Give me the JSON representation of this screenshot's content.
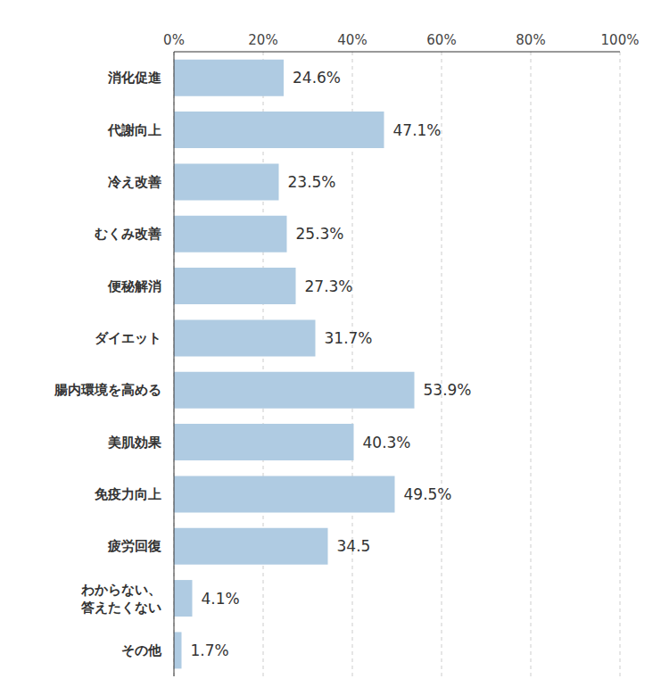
{
  "chart_data": {
    "type": "bar",
    "orientation": "horizontal",
    "categories": [
      "消化促進",
      "代謝向上",
      "冷え改善",
      "むくみ改善",
      "便秘解消",
      "ダイエット",
      "腸内環境を高める",
      "美肌効果",
      "免疫力向上",
      "疲労回復",
      "わからない、答えたくない",
      "その他"
    ],
    "values": [
      24.6,
      47.1,
      23.5,
      25.3,
      27.3,
      31.7,
      53.9,
      40.3,
      49.5,
      34.5,
      4.1,
      1.7
    ],
    "value_labels": [
      "24.6%",
      "47.1%",
      "23.5%",
      "25.3%",
      "27.3%",
      "31.7%",
      "53.9%",
      "40.3%",
      "49.5%",
      "34.5",
      "4.1%",
      "1.7%"
    ],
    "color": "#afcbe2",
    "xlim": [
      0,
      100
    ],
    "xticks": [
      {
        "value": 0,
        "label": "0%"
      },
      {
        "value": 20,
        "label": "20%"
      },
      {
        "value": 40,
        "label": "40%"
      },
      {
        "value": 60,
        "label": "60%"
      },
      {
        "value": 80,
        "label": "80%"
      },
      {
        "value": 100,
        "label": "100%"
      }
    ],
    "grid": true,
    "data_labels": true
  }
}
